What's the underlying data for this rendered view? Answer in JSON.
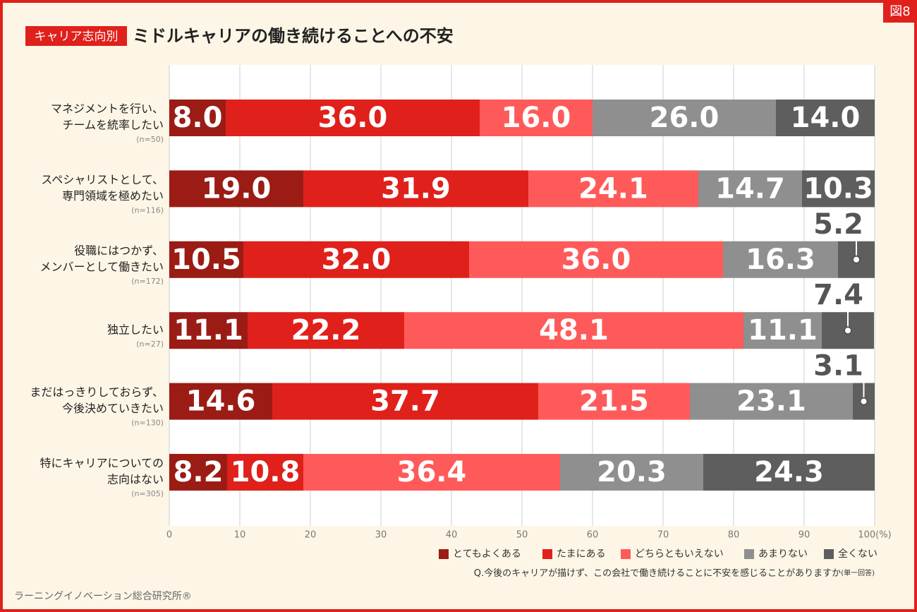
{
  "figure_label": "図8",
  "chart_data": {
    "type": "stacked-bar-horizontal",
    "tag": "キャリア志向別",
    "title": "ミドルキャリアの働き続けることへの不安",
    "categories": [
      [
        "マネジメントを行い、",
        "チームを統率したい"
      ],
      [
        "スペシャリストとして、",
        "専門領域を極めたい"
      ],
      [
        "役職にはつかず、",
        "メンバーとして働きたい"
      ],
      [
        "独立したい"
      ],
      [
        "まだはっきりしておらず、",
        "今後決めていきたい"
      ],
      [
        "特にキャリアについての",
        "志向はない"
      ]
    ],
    "sample_sizes": [
      "(n=50)",
      "(n=116)",
      "(n=172)",
      "(n=27)",
      "(n=130)",
      "(n=305)"
    ],
    "series": [
      {
        "name": "とてもよくある",
        "color": "#9b1c14",
        "values": [
          8.0,
          19.0,
          10.5,
          11.1,
          14.6,
          8.2
        ],
        "value_labels": [
          "8.0",
          "19.0",
          "10.5",
          "11.1",
          "14.6",
          "8.2"
        ]
      },
      {
        "name": "たまにある",
        "color": "#e0201b",
        "values": [
          36.0,
          31.9,
          32.0,
          22.2,
          37.7,
          10.8
        ],
        "value_labels": [
          "36.0",
          "31.9",
          "32.0",
          "22.2",
          "37.7",
          "10.8"
        ]
      },
      {
        "name": "どちらともいえない",
        "color": "#ff5a5a",
        "values": [
          16.0,
          24.1,
          36.0,
          48.1,
          21.5,
          36.4
        ],
        "value_labels": [
          "16.0",
          "24.1",
          "36.0",
          "48.1",
          "21.5",
          "36.4"
        ]
      },
      {
        "name": "あまりない",
        "color": "#8f8f8f",
        "values": [
          26.0,
          14.7,
          16.3,
          11.1,
          23.1,
          20.3
        ],
        "value_labels": [
          "26.0",
          "14.7",
          "16.3",
          "11.1",
          "23.1",
          "20.3"
        ]
      },
      {
        "name": "全くない",
        "color": "#5e5e5e",
        "values": [
          14.0,
          10.3,
          5.2,
          7.4,
          3.1,
          24.3
        ],
        "value_labels": [
          "14.0",
          "10.3",
          "5.2",
          "7.4",
          "3.1",
          "24.3"
        ]
      }
    ],
    "xlim": [
      0,
      100
    ],
    "xticks": [
      0,
      10,
      20,
      30,
      40,
      50,
      60,
      70,
      80,
      90,
      {
        "value": 100,
        "label": "100(%)"
      }
    ],
    "grid": true,
    "legend": "bottom-right",
    "note": "Q.今後のキャリアが描けず、この会社で働き続けることに不安を感じることがありますか",
    "note_suffix": "(単一回答)",
    "source": "ラーニングイノベーション総合研究所®"
  }
}
